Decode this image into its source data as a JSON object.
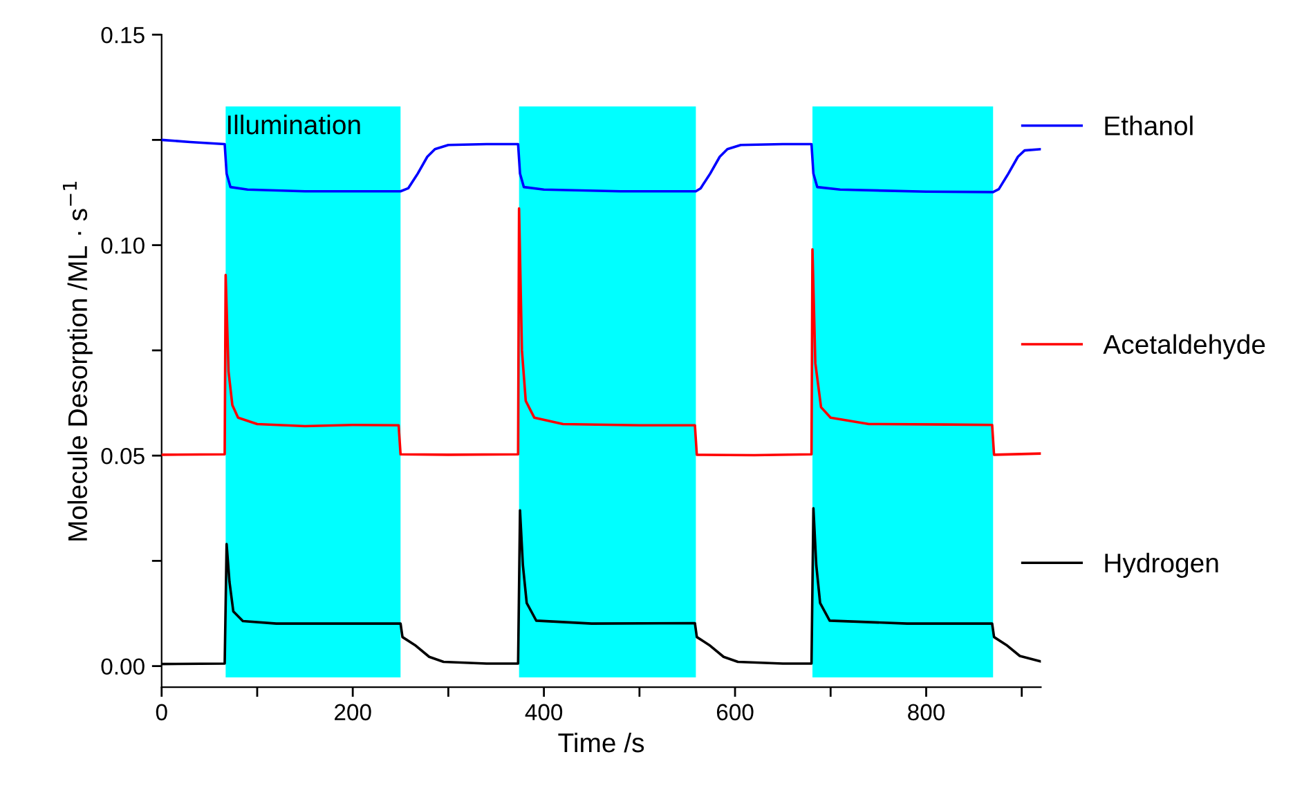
{
  "chart_data": {
    "type": "line",
    "xlabel": "Time /s",
    "ylabel": "Molecule Desorption /ML · s$^{−1}$",
    "xlim": [
      0,
      920
    ],
    "ylim": [
      -0.005,
      0.15
    ],
    "xticks": [
      0,
      {
        "value": 100,
        "label": null
      },
      200,
      {
        "value": 300,
        "label": null
      },
      400,
      {
        "value": 500,
        "label": null
      },
      600,
      {
        "value": 700,
        "label": null
      },
      800,
      {
        "value": 900,
        "label": null
      }
    ],
    "yticks": [
      {
        "value": 0,
        "label": "0.00"
      },
      {
        "value": 0.025,
        "label": null
      },
      {
        "value": 0.05,
        "label": "0.05"
      },
      {
        "value": 0.075,
        "label": null
      },
      {
        "value": 0.1,
        "label": "0.10"
      },
      {
        "value": 0.125,
        "label": null
      },
      {
        "value": 0.15,
        "label": "0.15"
      }
    ],
    "grid": false,
    "legend": "right",
    "marker": "none",
    "line_style": "solid",
    "bands": [
      {
        "axis": "x",
        "from": 67,
        "to": 250,
        "label": "Illumination",
        "color": "#00ffff"
      },
      {
        "axis": "x",
        "from": 374,
        "to": 559,
        "color": "#00ffff"
      },
      {
        "axis": "x",
        "from": 681,
        "to": 870,
        "color": "#00ffff"
      }
    ],
    "series": [
      {
        "name": "Ethanol",
        "color": "#0000ff",
        "x": [
          0,
          30,
          66,
          68,
          72,
          90,
          150,
          200,
          250,
          258,
          268,
          278,
          286,
          300,
          340,
          373,
          375,
          379,
          400,
          480,
          559,
          564,
          574,
          584,
          592,
          606,
          650,
          680,
          682,
          686,
          710,
          800,
          870,
          876,
          886,
          896,
          903,
          920
        ],
        "values": [
          0.125,
          0.1245,
          0.124,
          0.117,
          0.1138,
          0.1132,
          0.1128,
          0.1128,
          0.1128,
          0.1135,
          0.117,
          0.121,
          0.1228,
          0.1238,
          0.124,
          0.124,
          0.117,
          0.1138,
          0.1132,
          0.1128,
          0.1128,
          0.1135,
          0.117,
          0.121,
          0.1228,
          0.1238,
          0.124,
          0.124,
          0.117,
          0.1138,
          0.1132,
          0.1127,
          0.1126,
          0.1133,
          0.117,
          0.121,
          0.1225,
          0.1228
        ]
      },
      {
        "name": "Acetaldehyde",
        "color": "#ff0000",
        "x": [
          0,
          66,
          67,
          70,
          74,
          80,
          100,
          150,
          200,
          248,
          250,
          300,
          373,
          374,
          377,
          381,
          390,
          420,
          500,
          558,
          560,
          620,
          680,
          681,
          684,
          690,
          700,
          740,
          820,
          869,
          871,
          920
        ],
        "values": [
          0.0502,
          0.0503,
          0.0929,
          0.07,
          0.062,
          0.059,
          0.0575,
          0.057,
          0.0573,
          0.0572,
          0.0503,
          0.0502,
          0.0503,
          0.1087,
          0.075,
          0.063,
          0.059,
          0.0575,
          0.0572,
          0.0572,
          0.0502,
          0.0501,
          0.0503,
          0.099,
          0.072,
          0.0615,
          0.059,
          0.0575,
          0.0574,
          0.0573,
          0.0502,
          0.0505
        ]
      },
      {
        "name": "Hydrogen",
        "color": "#000000",
        "x": [
          0,
          66,
          68,
          71,
          75,
          85,
          120,
          200,
          250,
          252,
          265,
          280,
          295,
          340,
          373,
          375,
          378,
          382,
          392,
          450,
          558,
          560,
          573,
          588,
          603,
          650,
          680,
          682,
          685,
          689,
          699,
          780,
          869,
          871,
          884,
          898,
          920
        ],
        "values": [
          0.0005,
          0.0006,
          0.029,
          0.02,
          0.013,
          0.0107,
          0.0101,
          0.0101,
          0.0101,
          0.0069,
          0.005,
          0.0022,
          0.001,
          0.0006,
          0.0006,
          0.037,
          0.024,
          0.015,
          0.0108,
          0.0101,
          0.0102,
          0.0069,
          0.005,
          0.0022,
          0.001,
          0.0006,
          0.0006,
          0.0375,
          0.024,
          0.015,
          0.0108,
          0.0101,
          0.0101,
          0.0069,
          0.005,
          0.0024,
          0.0011
        ]
      }
    ]
  }
}
